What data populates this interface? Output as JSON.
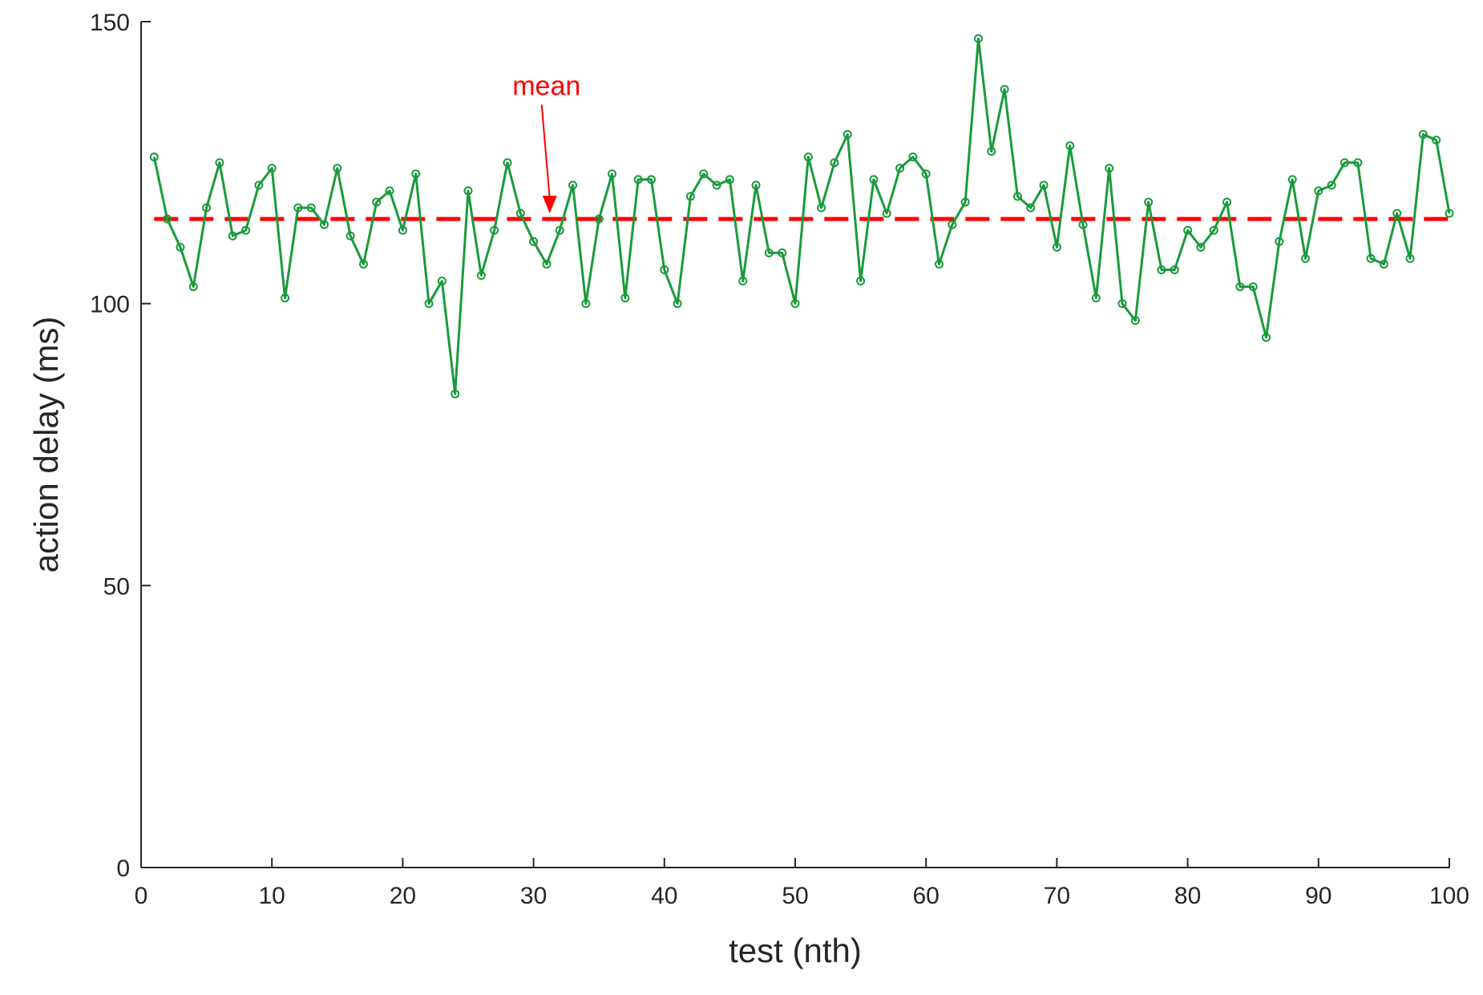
{
  "chart_data": {
    "type": "line",
    "xlabel": "test (nth)",
    "ylabel": "action delay (ms)",
    "xlim": [
      0,
      100
    ],
    "ylim": [
      0,
      150
    ],
    "xticks": [
      0,
      10,
      20,
      30,
      40,
      50,
      60,
      70,
      80,
      90,
      100
    ],
    "yticks": [
      0,
      50,
      100,
      150
    ],
    "grid": false,
    "legend": "none",
    "series": [
      {
        "color": "#1a9a3c",
        "marker": "open-circle",
        "x": [
          1,
          2,
          3,
          4,
          5,
          6,
          7,
          8,
          9,
          10,
          11,
          12,
          13,
          14,
          15,
          16,
          17,
          18,
          19,
          20,
          21,
          22,
          23,
          24,
          25,
          26,
          27,
          28,
          29,
          30,
          31,
          32,
          33,
          34,
          35,
          36,
          37,
          38,
          39,
          40,
          41,
          42,
          43,
          44,
          45,
          46,
          47,
          48,
          49,
          50,
          51,
          52,
          53,
          54,
          55,
          56,
          57,
          58,
          59,
          60,
          61,
          62,
          63,
          64,
          65,
          66,
          67,
          68,
          69,
          70,
          71,
          72,
          73,
          74,
          75,
          76,
          77,
          78,
          79,
          80,
          81,
          82,
          83,
          84,
          85,
          86,
          87,
          88,
          89,
          90,
          91,
          92,
          93,
          94,
          95,
          96,
          97,
          98,
          99,
          100
        ],
        "values": [
          126,
          115,
          110,
          103,
          117,
          125,
          112,
          113,
          121,
          124,
          101,
          117,
          117,
          114,
          124,
          112,
          107,
          118,
          120,
          113,
          123,
          100,
          104,
          84,
          120,
          105,
          113,
          125,
          116,
          111,
          107,
          113,
          121,
          100,
          115,
          123,
          101,
          122,
          122,
          106,
          100,
          119,
          123,
          121,
          122,
          104,
          121,
          109,
          109,
          100,
          126,
          117,
          125,
          130,
          104,
          122,
          116,
          124,
          126,
          123,
          107,
          114,
          118,
          147,
          127,
          138,
          119,
          117,
          121,
          110,
          128,
          114,
          101,
          124,
          100,
          97,
          118,
          106,
          106,
          113,
          110,
          113,
          118,
          103,
          103,
          94,
          111,
          122,
          108,
          120,
          121,
          125,
          125,
          108,
          107,
          116,
          108,
          130,
          129,
          116
        ]
      }
    ],
    "mean_line": {
      "value": 115,
      "color": "#ff0000",
      "style": "dashed"
    },
    "annotations": [
      {
        "text": "mean",
        "color": "#ff0000",
        "x": 30.5,
        "y": 137,
        "arrow_to": [
          30.5,
          116
        ]
      }
    ]
  }
}
